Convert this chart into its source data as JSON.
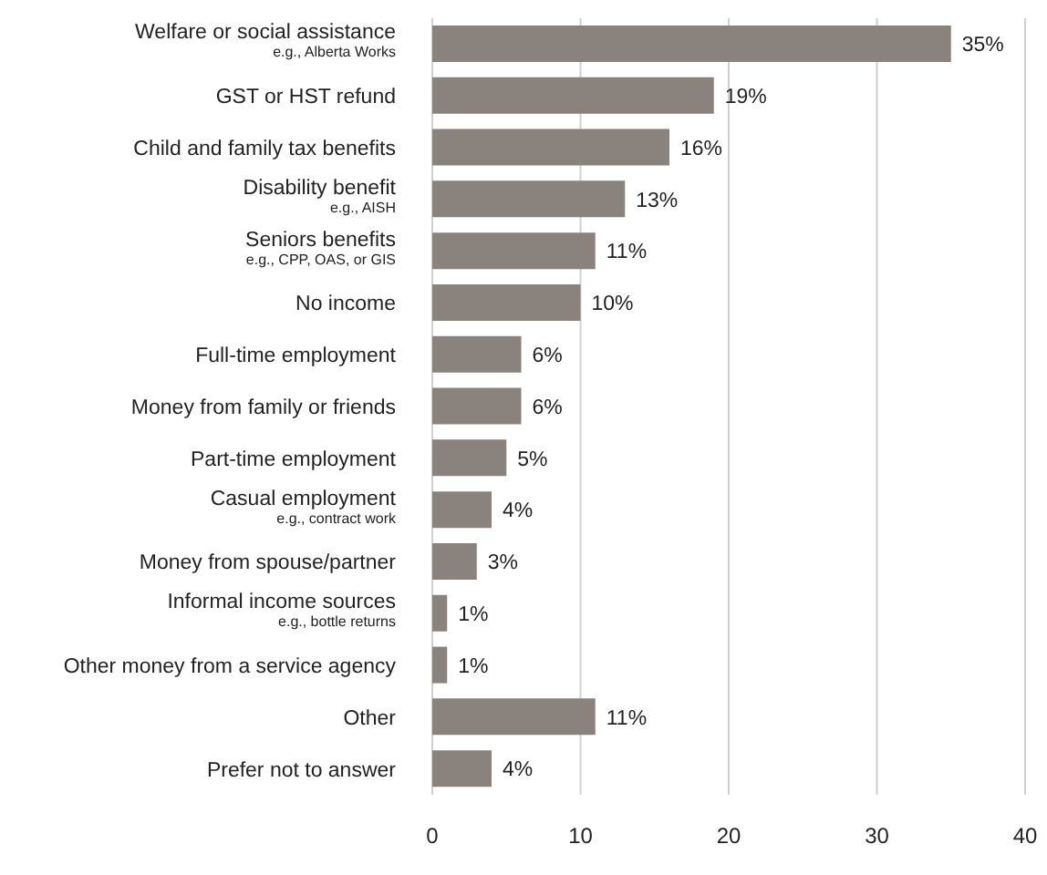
{
  "chart_data": {
    "type": "bar",
    "orientation": "horizontal",
    "categories": [
      "Welfare or social assistance\ne.g., Alberta Works",
      "GST or HST refund",
      "Child and family tax benefits",
      "Disability benefit\ne.g., AISH",
      "Seniors benefits\ne.g., CPP, OAS, or GIS",
      "No income",
      "Full-time employment",
      "Money from family or friends",
      "Part-time employment",
      "Casual employment\ne.g., contract work",
      "Money from spouse/partner",
      "Informal income sources\ne.g., bottle returns",
      "Other money from a service agency",
      "Other",
      "Prefer not to answer"
    ],
    "values": [
      35,
      19,
      16,
      13,
      11,
      10,
      6,
      6,
      5,
      4,
      3,
      1,
      1,
      11,
      4
    ],
    "value_labels": [
      "35%",
      "19%",
      "16%",
      "13%",
      "11%",
      "10%",
      "6%",
      "6%",
      "5%",
      "4%",
      "3%",
      "1%",
      "1%",
      "11%",
      "4%"
    ],
    "color": "#8a827c",
    "xlim": [
      0,
      40
    ],
    "xticks": [
      0,
      10,
      20,
      30,
      40
    ],
    "grid": "x"
  }
}
